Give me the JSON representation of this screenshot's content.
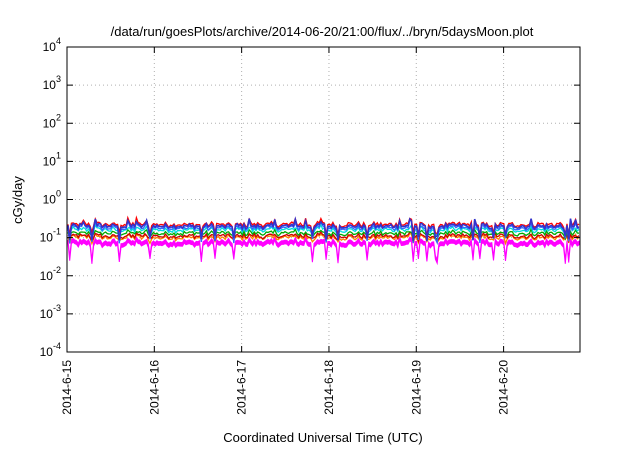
{
  "chart_data": {
    "type": "line",
    "title": "/data/run/goesPlots/archive/2014-06-20/21:00/flux/../bryn/5daysMoon.plot",
    "xlabel": "Coordinated Universal Time (UTC)",
    "ylabel": "cGy/day",
    "yscale": "log",
    "ylim": [
      0.0001,
      10000
    ],
    "y_tick_labels": [
      {
        "base": "10",
        "exp": "-4"
      },
      {
        "base": "10",
        "exp": "-3"
      },
      {
        "base": "10",
        "exp": "-2"
      },
      {
        "base": "10",
        "exp": "-1"
      },
      {
        "base": "10",
        "exp": "0"
      },
      {
        "base": "10",
        "exp": "1"
      },
      {
        "base": "10",
        "exp": "2"
      },
      {
        "base": "10",
        "exp": "3"
      },
      {
        "base": "10",
        "exp": "4"
      }
    ],
    "xlim": [
      "2014-06-15 00:00",
      "2014-06-20 21:00"
    ],
    "x_tick_labels": [
      "2014-6-15",
      "2014-6-16",
      "2014-6-17",
      "2014-6-18",
      "2014-6-19",
      "2014-6-20"
    ],
    "grid": true,
    "legend": "none",
    "series": [
      {
        "color": "#ff00ff",
        "filled": true,
        "typical": 0.08,
        "min": 0.025,
        "max": 0.11
      },
      {
        "color": "#ff8000",
        "typical": 0.1,
        "min": 0.07,
        "max": 0.13
      },
      {
        "color": "#cc0000",
        "typical": 0.11,
        "min": 0.08,
        "max": 0.14
      },
      {
        "color": "#00aa00",
        "typical": 0.13,
        "min": 0.09,
        "max": 0.17
      },
      {
        "color": "#00dddd",
        "typical": 0.16,
        "min": 0.11,
        "max": 0.22
      },
      {
        "color": "#3366ff",
        "typical": 0.18,
        "min": 0.07,
        "max": 0.3
      },
      {
        "color": "#ff0000",
        "typical": 0.22,
        "min": 0.1,
        "max": 0.35
      },
      {
        "color": "#3333cc",
        "typical": 0.2,
        "min": 0.08,
        "max": 0.32
      }
    ]
  }
}
